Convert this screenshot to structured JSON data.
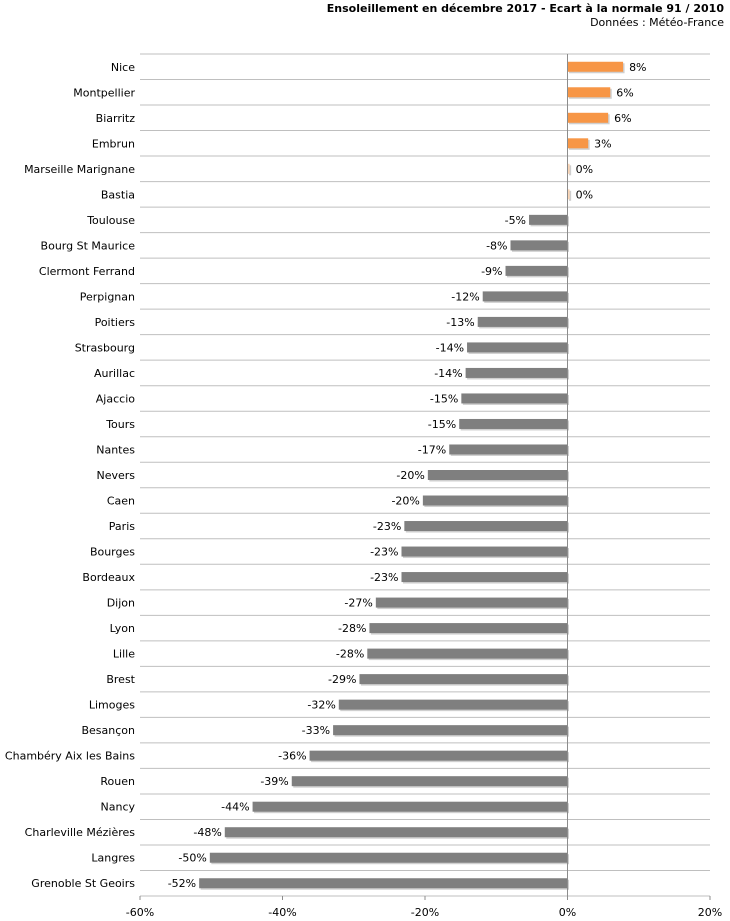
{
  "chart_data": {
    "type": "bar",
    "orientation": "horizontal",
    "title": "Ensoleillement en décembre 2017 - Ecart à la normale 91 / 2010",
    "subtitle": "Données : Météo-France",
    "xlim": [
      -60,
      20
    ],
    "xticks": [
      "-60%",
      "-40%",
      "-20%",
      "0%",
      "20%"
    ],
    "xtick_values": [
      -60,
      -40,
      -20,
      0,
      20
    ],
    "grid": "horizontal",
    "colors": {
      "positive": "#f79646",
      "negative": "#7f7f7f",
      "zero": "#fbd5b5",
      "grid": "#bfbfbf"
    },
    "categories": [
      "Nice",
      "Montpellier",
      "Biarritz",
      "Embrun",
      "Marseille Marignane",
      "Bastia",
      "Toulouse",
      "Bourg St Maurice",
      "Clermont Ferrand",
      "Perpignan",
      "Poitiers",
      "Strasbourg",
      "Aurillac",
      "Ajaccio",
      "Tours",
      "Nantes",
      "Nevers",
      "Caen",
      "Paris",
      "Bourges",
      "Bordeaux",
      "Dijon",
      "Lyon",
      "Lille",
      "Brest",
      "Limoges",
      "Besançon",
      "Chambéry Aix les Bains",
      "Rouen",
      "Nancy",
      "Charleville Mézières",
      "Langres",
      "Grenoble St Geoirs"
    ],
    "values": [
      7.8,
      6.0,
      5.7,
      2.9,
      0.3,
      0.3,
      -5.4,
      -8.0,
      -8.7,
      -11.9,
      -12.6,
      -14.1,
      -14.3,
      -14.9,
      -15.2,
      -16.6,
      -19.6,
      -20.3,
      -22.9,
      -23.3,
      -23.3,
      -26.9,
      -27.8,
      -28.1,
      -29.2,
      -32.1,
      -32.9,
      -36.2,
      -38.7,
      -44.2,
      -48.1,
      -50.2,
      -51.7
    ],
    "labels": [
      "8%",
      "6%",
      "6%",
      "3%",
      "0%",
      "0%",
      "-5%",
      "-8%",
      "-9%",
      "-12%",
      "-13%",
      "-14%",
      "-14%",
      "-15%",
      "-15%",
      "-17%",
      "-20%",
      "-20%",
      "-23%",
      "-23%",
      "-23%",
      "-27%",
      "-28%",
      "-28%",
      "-29%",
      "-32%",
      "-33%",
      "-36%",
      "-39%",
      "-44%",
      "-48%",
      "-50%",
      "-52%"
    ]
  }
}
